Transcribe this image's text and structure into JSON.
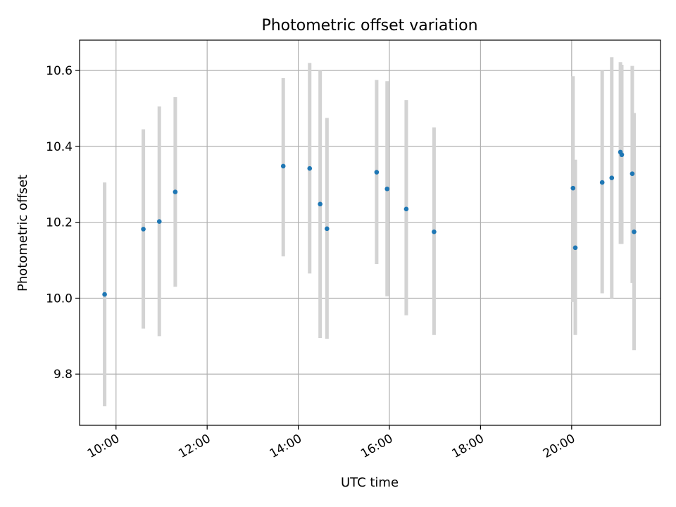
{
  "chart_data": {
    "type": "scatter",
    "title": "Photometric offset variation",
    "xlabel": "UTC time",
    "ylabel": "Photometric offset",
    "x_unit": "hours UTC",
    "xlim": [
      9.2,
      21.95
    ],
    "ylim": [
      9.665,
      10.68
    ],
    "x_ticks": [
      10,
      12,
      14,
      16,
      18,
      20
    ],
    "x_tick_labels": [
      "10:00",
      "12:00",
      "14:00",
      "16:00",
      "18:00",
      "20:00"
    ],
    "y_ticks": [
      9.8,
      10.0,
      10.2,
      10.4,
      10.6
    ],
    "y_tick_labels": [
      "9.8",
      "10.0",
      "10.2",
      "10.4",
      "10.6"
    ],
    "grid": true,
    "colors": {
      "point": "#1f77b4",
      "errorbar": "#d3d3d3"
    },
    "series": [
      {
        "points": [
          {
            "x": 9.75,
            "y": 10.01,
            "lo": 9.715,
            "hi": 10.305
          },
          {
            "x": 10.6,
            "y": 10.182,
            "lo": 9.92,
            "hi": 10.445
          },
          {
            "x": 10.95,
            "y": 10.202,
            "lo": 9.9,
            "hi": 10.505
          },
          {
            "x": 11.3,
            "y": 10.28,
            "lo": 10.03,
            "hi": 10.53
          },
          {
            "x": 13.67,
            "y": 10.348,
            "lo": 10.11,
            "hi": 10.58
          },
          {
            "x": 14.25,
            "y": 10.342,
            "lo": 10.065,
            "hi": 10.62
          },
          {
            "x": 14.48,
            "y": 10.248,
            "lo": 9.895,
            "hi": 10.6
          },
          {
            "x": 14.63,
            "y": 10.183,
            "lo": 9.893,
            "hi": 10.475
          },
          {
            "x": 15.72,
            "y": 10.332,
            "lo": 10.09,
            "hi": 10.575
          },
          {
            "x": 15.95,
            "y": 10.288,
            "lo": 10.005,
            "hi": 10.572
          },
          {
            "x": 16.37,
            "y": 10.235,
            "lo": 9.955,
            "hi": 10.522
          },
          {
            "x": 16.98,
            "y": 10.175,
            "lo": 9.903,
            "hi": 10.45
          },
          {
            "x": 20.03,
            "y": 10.29,
            "lo": 9.99,
            "hi": 10.585
          },
          {
            "x": 20.08,
            "y": 10.133,
            "lo": 9.903,
            "hi": 10.365
          },
          {
            "x": 20.67,
            "y": 10.305,
            "lo": 10.013,
            "hi": 10.6
          },
          {
            "x": 20.88,
            "y": 10.317,
            "lo": 10.0,
            "hi": 10.635
          },
          {
            "x": 21.07,
            "y": 10.385,
            "lo": 10.143,
            "hi": 10.622
          },
          {
            "x": 21.1,
            "y": 10.378,
            "lo": 10.143,
            "hi": 10.615
          },
          {
            "x": 21.33,
            "y": 10.328,
            "lo": 10.04,
            "hi": 10.612
          },
          {
            "x": 21.37,
            "y": 10.175,
            "lo": 9.863,
            "hi": 10.488
          }
        ]
      }
    ]
  }
}
